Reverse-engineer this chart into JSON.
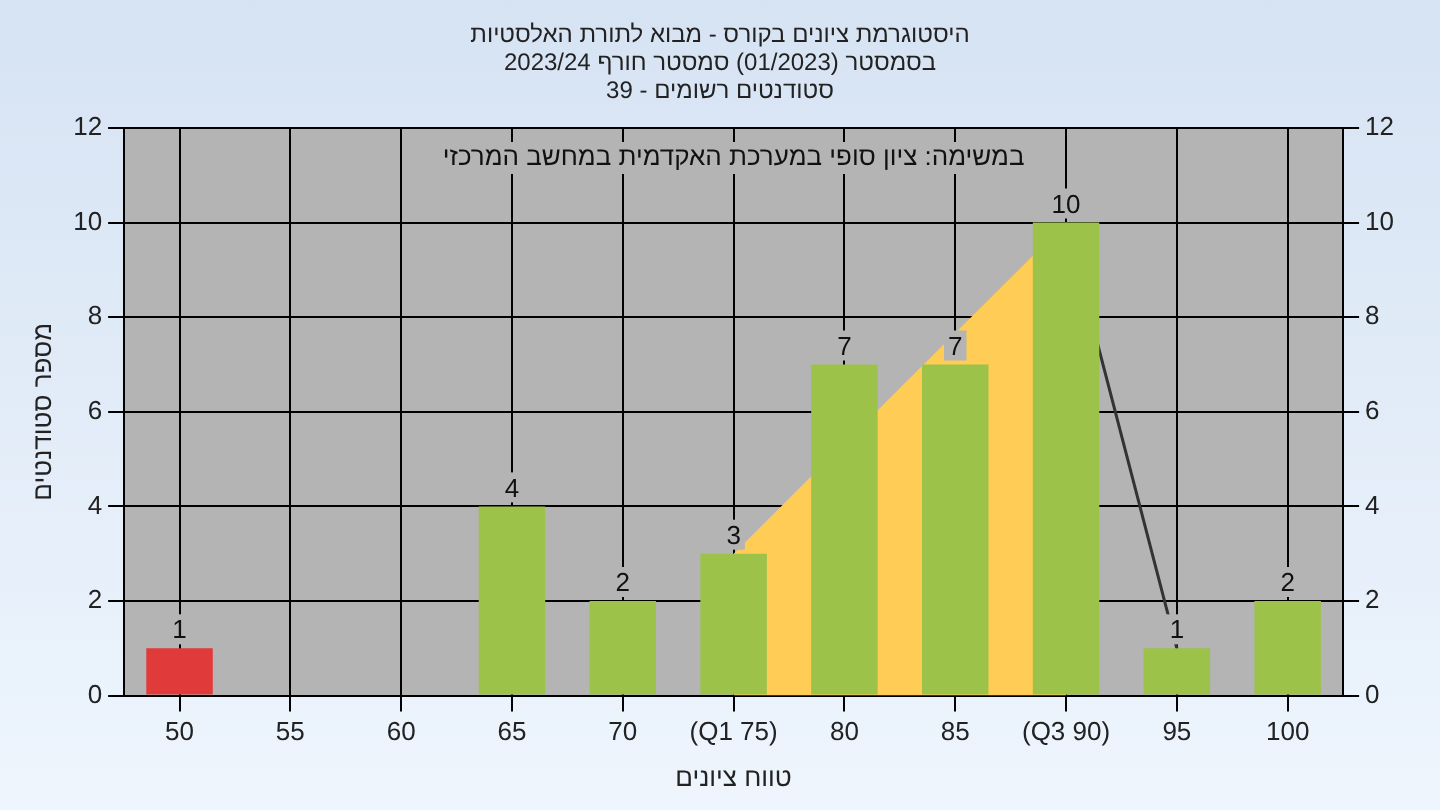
{
  "chart_data": {
    "type": "bar",
    "title": "היסטוגרמת ציונים בקורס - מבוא לתורת האלסטיות",
    "subtitle": "בסמסטר (01/2023) סמסטר חורף 2023/24\nסטודנטים רשומים - 39",
    "xlabel": "טווח ציונים",
    "ylabel": "מספר סטודנטים",
    "annotations": [
      "במשימה: ציון סופי במערכת האקדמית במחשב המרכזי"
    ],
    "categories": [
      "50",
      "55",
      "60",
      "65",
      "70",
      "(Q1 75)",
      "80",
      "85",
      "(Q3 90)",
      "95",
      "100"
    ],
    "series": [
      {
        "type": "area",
        "color": "#ffcc55",
        "values": [
          null,
          null,
          null,
          null,
          null,
          3,
          null,
          null,
          10,
          null,
          null
        ]
      },
      {
        "type": "line",
        "color": "#333333",
        "values": [
          null,
          null,
          null,
          null,
          null,
          null,
          null,
          null,
          10,
          1,
          null
        ]
      },
      {
        "colors": [
          "#e03a3a",
          "#9dc24a",
          "#9dc24a",
          "#9dc24a",
          "#9dc24a",
          "#9dc24a",
          "#9dc24a",
          "#9dc24a",
          "#9dc24a",
          "#9dc24a",
          "#9dc24a"
        ],
        "values": [
          1,
          0,
          0,
          4,
          2,
          3,
          7,
          7,
          10,
          1,
          2
        ],
        "value_labels": [
          "1",
          null,
          null,
          "4",
          "2",
          "3",
          "7",
          "7",
          "10",
          "1",
          "2"
        ]
      }
    ],
    "ylim": [
      0,
      12
    ],
    "yticks": [
      0,
      2,
      4,
      6,
      8,
      10,
      12
    ],
    "y2lim": [
      0,
      12
    ],
    "y2ticks": [
      0,
      2,
      4,
      6,
      8,
      10,
      12
    ],
    "grid": true,
    "legend": false,
    "marker": "none"
  }
}
